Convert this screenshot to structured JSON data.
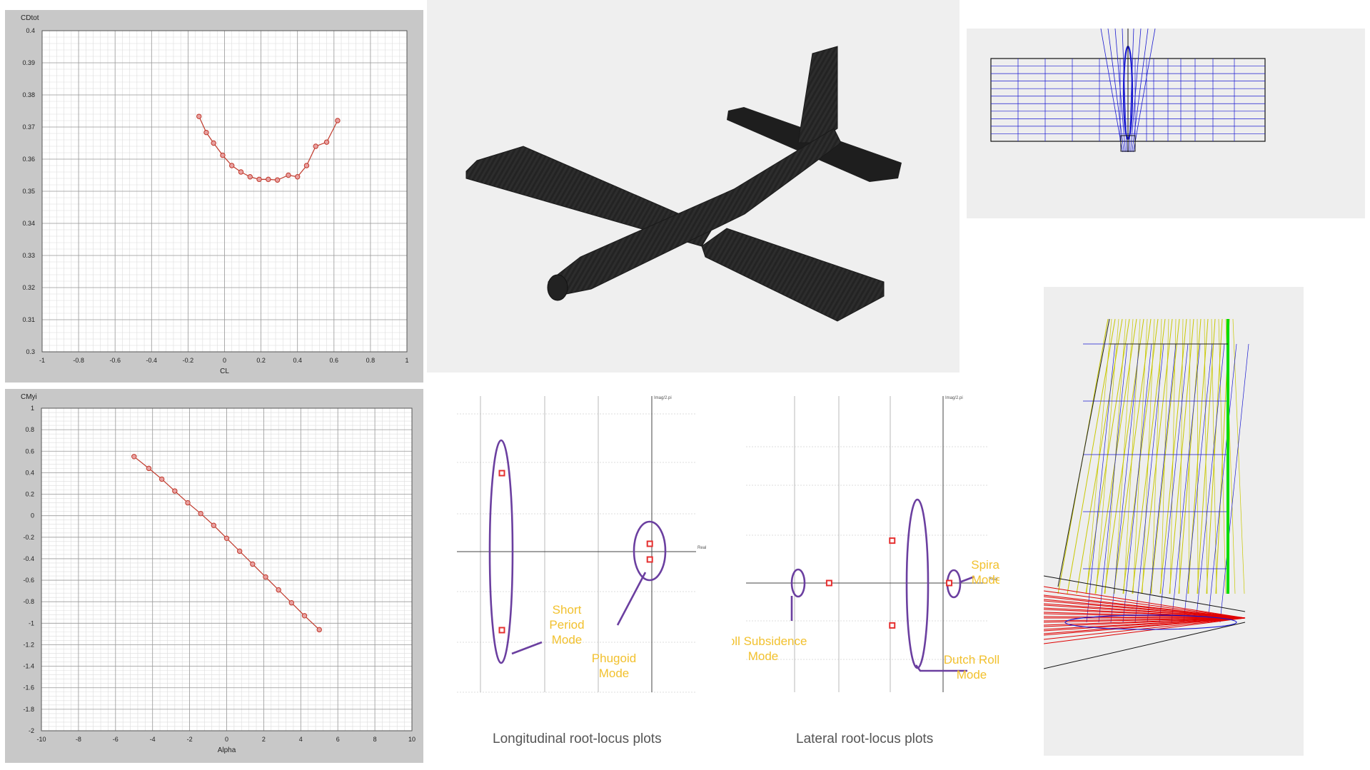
{
  "chart_data": [
    {
      "type": "line",
      "ylabel": "CDtot",
      "xlabel": "CL",
      "xlim": [
        -1,
        1
      ],
      "ylim": [
        0.3,
        0.4
      ],
      "x_ticks": [
        "-1",
        "-0.8",
        "-0.6",
        "-0.4",
        "-0.2",
        "0",
        "0.2",
        "0.4",
        "0.6",
        "0.8",
        "1"
      ],
      "y_ticks": [
        "0.3",
        "0.31",
        "0.32",
        "0.33",
        "0.34",
        "0.35",
        "0.36",
        "0.37",
        "0.38",
        "0.39",
        "0.4"
      ],
      "grid": true,
      "series": [
        {
          "x": [
            -0.14,
            -0.1,
            -0.06,
            -0.01,
            0.04,
            0.09,
            0.14,
            0.19,
            0.24,
            0.29,
            0.35,
            0.4,
            0.45,
            0.5,
            0.56,
            0.62
          ],
          "y": [
            0.3733,
            0.3683,
            0.365,
            0.3612,
            0.358,
            0.356,
            0.3545,
            0.3537,
            0.3537,
            0.3535,
            0.355,
            0.3545,
            0.358,
            0.364,
            0.3653,
            0.372
          ]
        }
      ]
    },
    {
      "type": "line",
      "ylabel": "CMyi",
      "xlabel": "Alpha",
      "xlim": [
        -10,
        10
      ],
      "ylim": [
        -2,
        1
      ],
      "x_ticks": [
        "-10",
        "-8",
        "-6",
        "-4",
        "-2",
        "0",
        "2",
        "4",
        "6",
        "8",
        "10"
      ],
      "y_ticks": [
        "-2",
        "-1.8",
        "-1.6",
        "-1.4",
        "-1.2",
        "-1",
        "-0.8",
        "-0.6",
        "-0.4",
        "-0.2",
        "0",
        "0.2",
        "0.4",
        "0.6",
        "0.8",
        "1"
      ],
      "grid": true,
      "series": [
        {
          "x": [
            -5,
            -4.2,
            -3.5,
            -2.8,
            -2.1,
            -1.4,
            -0.7,
            0,
            0.7,
            1.4,
            2.1,
            2.8,
            3.5,
            4.2,
            5
          ],
          "y": [
            0.55,
            0.44,
            0.34,
            0.23,
            0.12,
            0.02,
            -0.09,
            -0.21,
            -0.33,
            -0.45,
            -0.57,
            -0.69,
            -0.81,
            -0.93,
            -1.06
          ]
        }
      ]
    },
    {
      "type": "scatter",
      "caption": "Longitudinal root-locus plots",
      "x_axis_label": "Real",
      "y_axis_label": "Imag/2.pi",
      "poles": [
        {
          "real": -7.5,
          "imag": 1.0
        },
        {
          "real": -7.5,
          "imag": -1.0
        },
        {
          "real": -0.1,
          "imag": 0.1
        },
        {
          "real": -0.1,
          "imag": -0.1
        }
      ],
      "annotations": [
        {
          "lines": [
            "Short",
            "Period",
            "Mode"
          ]
        },
        {
          "lines": [
            "Phugoid",
            "Mode"
          ]
        }
      ]
    },
    {
      "type": "scatter",
      "caption": "Lateral root-locus plots",
      "x_axis_label": "Real",
      "y_axis_label": "Imag/2.pi",
      "poles": [
        {
          "real": -5.6,
          "imag": 0.0
        },
        {
          "real": -2.5,
          "imag": 1.1
        },
        {
          "real": -2.5,
          "imag": -1.1
        },
        {
          "real": 0.3,
          "imag": 0.0
        }
      ],
      "annotations": [
        {
          "lines": [
            "Roll Subsidence",
            "Mode"
          ]
        },
        {
          "lines": [
            "Dutch Roll",
            "Mode"
          ]
        },
        {
          "lines": [
            "Spiral",
            "Mode"
          ]
        }
      ]
    }
  ],
  "colors": {
    "panel_bg": "#c8c8c8",
    "plot_bg": "#ffffff",
    "curve": "#c0392b",
    "annotation_ring": "#6b3fa0",
    "annotation_text": "#f2c12e",
    "aircraft": "#2a2a2a",
    "mesh_blue": "#1a1ad0",
    "mesh_yellow": "#c8c800",
    "mesh_red": "#e00000",
    "mesh_green": "#00dd00"
  },
  "images": {
    "aircraft_render": "3d-aircraft-render",
    "wing_panel_mesh": "wing-panel-mesh-topview",
    "tail_panel_mesh": "tail-panel-mesh-closeup"
  }
}
